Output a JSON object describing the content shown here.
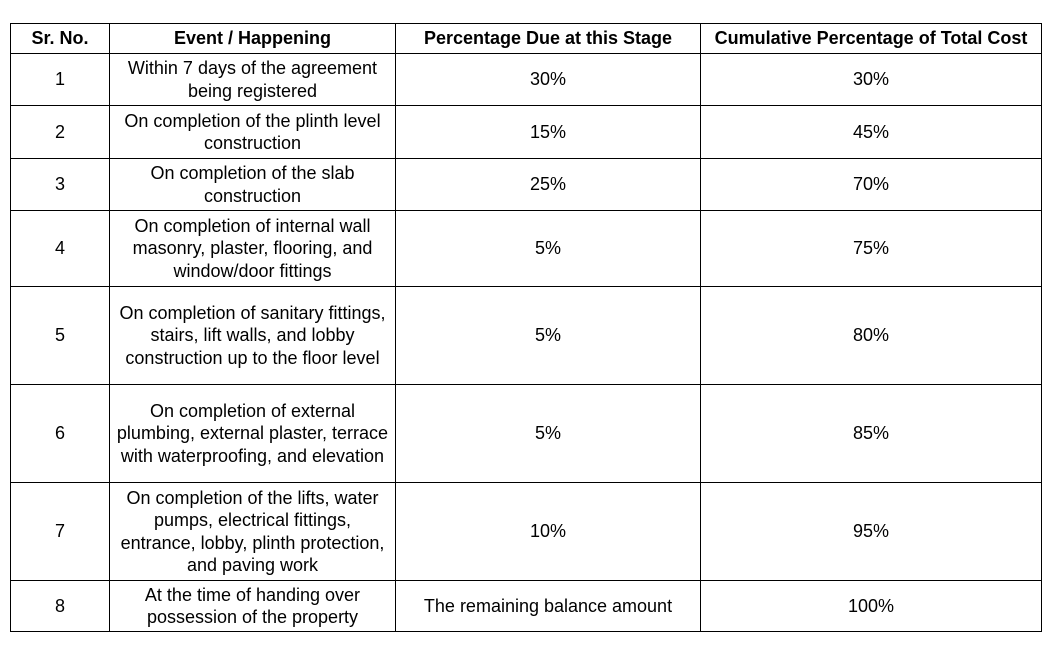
{
  "table": {
    "headers": [
      "Sr. No.",
      "Event / Happening",
      "Percentage Due at this Stage",
      "Cumulative Percentage of Total Cost"
    ],
    "rows": [
      {
        "sr": "1",
        "event": "Within 7 days of the agreement being registered",
        "due": "30%",
        "cumulative": "30%"
      },
      {
        "sr": "2",
        "event": "On completion of the plinth level construction",
        "due": "15%",
        "cumulative": "45%"
      },
      {
        "sr": "3",
        "event": "On completion of the slab construction",
        "due": "25%",
        "cumulative": "70%"
      },
      {
        "sr": "4",
        "event": "On completion of internal wall masonry, plaster, flooring, and window/door fittings",
        "due": "5%",
        "cumulative": "75%"
      },
      {
        "sr": "5",
        "event": "On completion of sanitary fittings, stairs, lift walls, and lobby construction up to the floor level",
        "due": "5%",
        "cumulative": "80%"
      },
      {
        "sr": "6",
        "event": "On completion of external plumbing, external plaster, terrace with waterproofing, and elevation",
        "due": "5%",
        "cumulative": "85%"
      },
      {
        "sr": "7",
        "event": "On completion of the lifts, water pumps, electrical fittings, entrance, lobby, plinth protection, and paving work",
        "due": "10%",
        "cumulative": "95%"
      },
      {
        "sr": "8",
        "event": "At the time of handing over possession of the property",
        "due": "The remaining balance amount",
        "cumulative": "100%"
      }
    ]
  }
}
